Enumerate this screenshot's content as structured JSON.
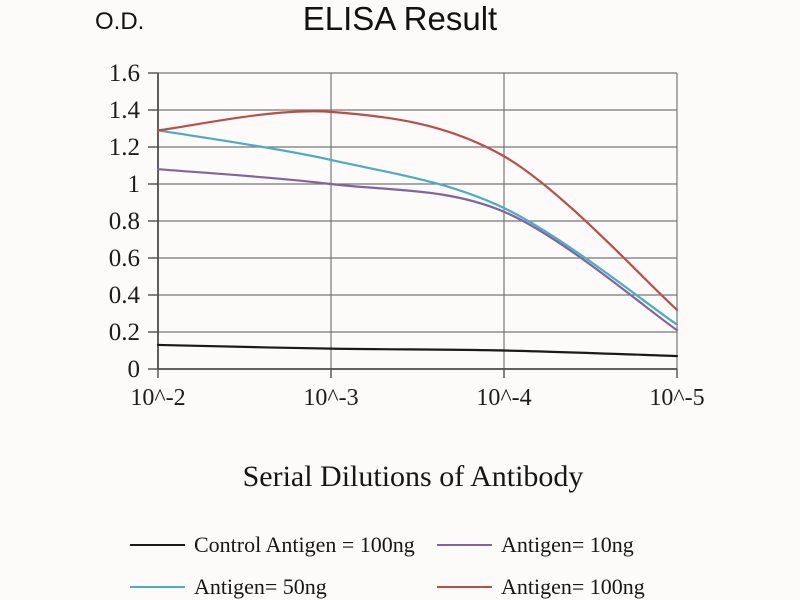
{
  "figure": {
    "background": "#fcfbf9"
  },
  "chart_data": {
    "type": "line",
    "title": "ELISA Result",
    "ylabel": "O.D.",
    "xlabel": "Serial Dilutions of Antibody",
    "categories": [
      "10^-2",
      "10^-3",
      "10^-4",
      "10^-5"
    ],
    "y_tick_labels": [
      "0",
      "0.2",
      "0.4",
      "0.6",
      "0.8",
      "1",
      "1.2",
      "1.4",
      "1.6"
    ],
    "y_tick_values": [
      0,
      0.2,
      0.4,
      0.6,
      0.8,
      1,
      1.2,
      1.4,
      1.6
    ],
    "ylim": [
      0,
      1.6
    ],
    "grid": true,
    "legend_position": "bottom",
    "line_smoothing": true,
    "grid_color": "#777777",
    "axis_color": "#4f4f4f",
    "text_color": "#1c1c1c",
    "series": [
      {
        "name": "Control Antigen = 100ng",
        "color": "#1a1a1a",
        "values": [
          0.13,
          0.11,
          0.1,
          0.07
        ]
      },
      {
        "name": "Antigen= 10ng",
        "color": "#8064a2",
        "values": [
          1.08,
          1.0,
          0.85,
          0.21
        ]
      },
      {
        "name": "Antigen= 50ng",
        "color": "#4bacc6",
        "values": [
          1.29,
          1.13,
          0.87,
          0.24
        ]
      },
      {
        "name": "Antigen= 100ng",
        "color": "#be4b48",
        "values": [
          1.29,
          1.39,
          1.15,
          0.32
        ]
      }
    ]
  }
}
